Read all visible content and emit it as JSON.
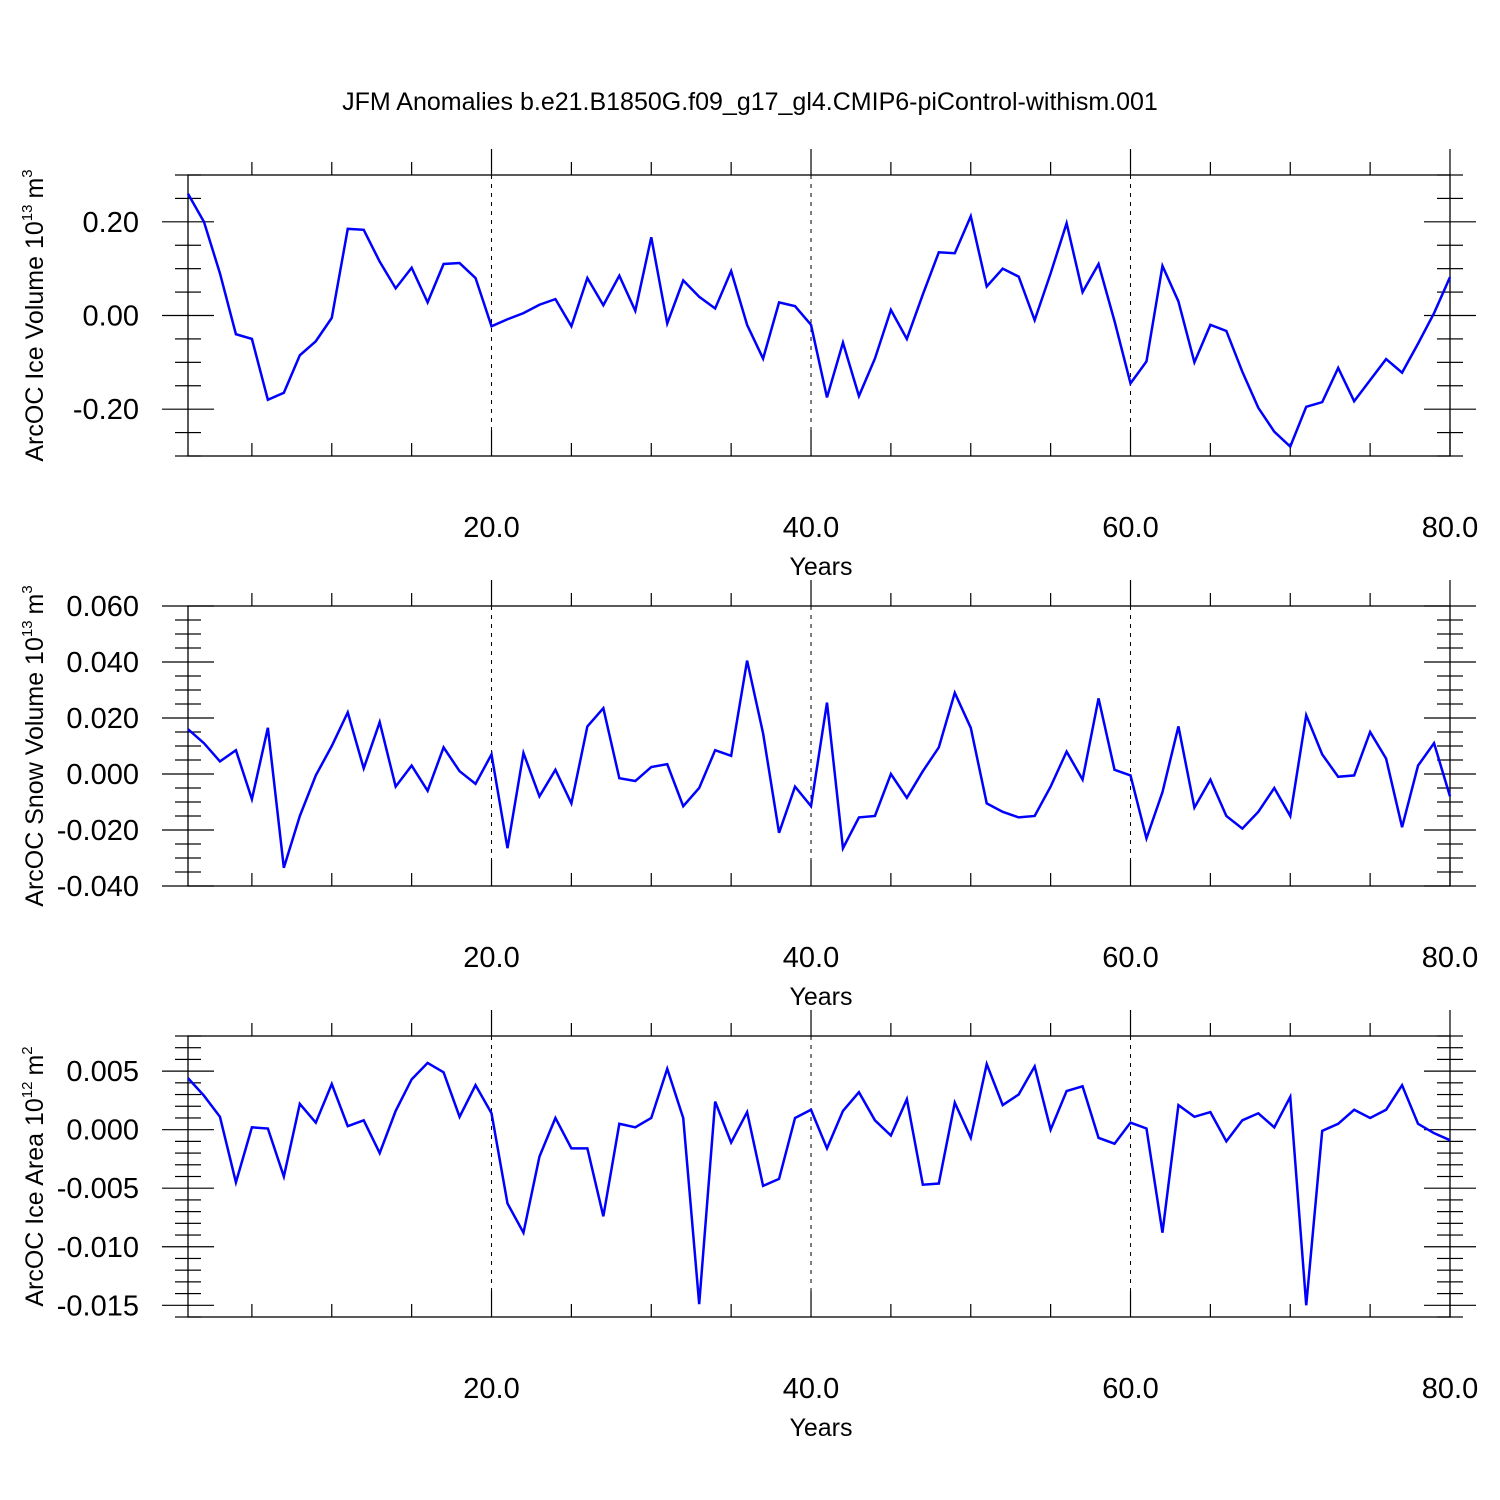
{
  "title": "JFM Anomalies b.e21.B1850G.f09_g17_gl4.CMIP6-piControl-withism.001",
  "chart_data": [
    {
      "type": "line",
      "xlabel": "Years",
      "ylabel": "ArcOC Ice Volume 10",
      "ylabel_exp": "13",
      "ylabel_unit": "m",
      "ylabel_unit_exp": "3",
      "xlim": [
        1,
        80
      ],
      "ylim": [
        -0.3,
        0.3
      ],
      "xticks": [
        20,
        40,
        60,
        80
      ],
      "xtick_labels": [
        "20.0",
        "40.0",
        "60.0",
        "80.0"
      ],
      "yticks": [
        -0.2,
        0.0,
        0.2
      ],
      "ytick_labels": [
        "-0.20",
        "0.00",
        "0.20"
      ],
      "grid_x": [
        20,
        40,
        60
      ],
      "series": [
        {
          "color": "#0000ff",
          "x": [
            1,
            2,
            3,
            4,
            5,
            6,
            7,
            8,
            9,
            10,
            11,
            12,
            13,
            14,
            15,
            16,
            17,
            18,
            19,
            20,
            21,
            22,
            23,
            24,
            25,
            26,
            27,
            28,
            29,
            30,
            31,
            32,
            33,
            34,
            35,
            36,
            37,
            38,
            39,
            40,
            41,
            42,
            43,
            44,
            45,
            46,
            47,
            48,
            49,
            50,
            51,
            52,
            53,
            54,
            55,
            56,
            57,
            58,
            59,
            60,
            61,
            62,
            63,
            64,
            65,
            66,
            67,
            68,
            69,
            70,
            71,
            72,
            73,
            74,
            75,
            76,
            77,
            78,
            79,
            80
          ],
          "y": [
            0.26,
            0.2,
            0.09,
            -0.04,
            -0.05,
            -0.18,
            -0.165,
            -0.085,
            -0.055,
            -0.005,
            0.185,
            0.183,
            0.115,
            0.058,
            0.102,
            0.028,
            0.11,
            0.112,
            0.08,
            -0.023,
            -0.008,
            0.005,
            0.023,
            0.035,
            -0.023,
            0.08,
            0.022,
            0.085,
            0.01,
            0.167,
            -0.017,
            0.075,
            0.04,
            0.015,
            0.095,
            -0.02,
            -0.092,
            0.028,
            0.02,
            -0.02,
            -0.175,
            -0.058,
            -0.172,
            -0.092,
            0.012,
            -0.05,
            0.045,
            0.135,
            0.133,
            0.212,
            0.062,
            0.1,
            0.083,
            -0.01,
            0.09,
            0.197,
            0.05,
            0.11,
            -0.012,
            -0.145,
            -0.098,
            0.106,
            0.03,
            -0.1,
            -0.02,
            -0.033,
            -0.12,
            -0.197,
            -0.248,
            -0.28,
            -0.195,
            -0.185,
            -0.112,
            -0.183,
            -0.138,
            -0.093,
            -0.122,
            -0.06,
            0.005,
            0.082
          ]
        }
      ]
    },
    {
      "type": "line",
      "xlabel": "Years",
      "ylabel": "ArcOC Snow Volume 10",
      "ylabel_exp": "13",
      "ylabel_unit": "m",
      "ylabel_unit_exp": "3",
      "xlim": [
        1,
        80
      ],
      "ylim": [
        -0.04,
        0.06
      ],
      "xticks": [
        20,
        40,
        60,
        80
      ],
      "xtick_labels": [
        "20.0",
        "40.0",
        "60.0",
        "80.0"
      ],
      "yticks": [
        -0.04,
        -0.02,
        0.0,
        0.02,
        0.04,
        0.06
      ],
      "ytick_labels": [
        "-0.040",
        "-0.020",
        "0.000",
        "0.020",
        "0.040",
        "0.060"
      ],
      "grid_x": [
        20,
        40,
        60
      ],
      "series": [
        {
          "color": "#0000ff",
          "x": [
            1,
            2,
            3,
            4,
            5,
            6,
            7,
            8,
            9,
            10,
            11,
            12,
            13,
            14,
            15,
            16,
            17,
            18,
            19,
            20,
            21,
            22,
            23,
            24,
            25,
            26,
            27,
            28,
            29,
            30,
            31,
            32,
            33,
            34,
            35,
            36,
            37,
            38,
            39,
            40,
            41,
            42,
            43,
            44,
            45,
            46,
            47,
            48,
            49,
            50,
            51,
            52,
            53,
            54,
            55,
            56,
            57,
            58,
            59,
            60,
            61,
            62,
            63,
            64,
            65,
            66,
            67,
            68,
            69,
            70,
            71,
            72,
            73,
            74,
            75,
            76,
            77,
            78,
            79,
            80
          ],
          "y": [
            0.016,
            0.011,
            0.0045,
            0.0085,
            -0.009,
            0.0165,
            -0.0335,
            -0.015,
            -0.0005,
            0.01,
            0.022,
            0.002,
            0.0185,
            -0.0045,
            0.003,
            -0.006,
            0.0095,
            0.001,
            -0.0035,
            0.007,
            -0.0265,
            0.0075,
            -0.008,
            0.0015,
            -0.0105,
            0.017,
            0.0235,
            -0.0015,
            -0.0025,
            0.0025,
            0.0035,
            -0.0115,
            -0.005,
            0.0085,
            0.0065,
            0.0405,
            0.0145,
            -0.021,
            -0.0045,
            -0.0115,
            0.0255,
            -0.0265,
            -0.0155,
            -0.015,
            0.0,
            -0.0085,
            0.001,
            0.0095,
            0.029,
            0.0165,
            -0.0105,
            -0.0135,
            -0.0155,
            -0.015,
            -0.0045,
            0.008,
            -0.002,
            0.027,
            0.0015,
            -0.0005,
            -0.023,
            -0.0065,
            0.017,
            -0.012,
            -0.002,
            -0.015,
            -0.0195,
            -0.0135,
            -0.005,
            -0.015,
            0.021,
            0.007,
            -0.001,
            -0.0005,
            0.015,
            0.0055,
            -0.019,
            0.003,
            0.011,
            -0.008
          ]
        }
      ]
    },
    {
      "type": "line",
      "xlabel": "Years",
      "ylabel": "ArcOC Ice Area 10",
      "ylabel_exp": "12",
      "ylabel_unit": "m",
      "ylabel_unit_exp": "2",
      "xlim": [
        1,
        80
      ],
      "ylim": [
        -0.016,
        0.008
      ],
      "xticks": [
        20,
        40,
        60,
        80
      ],
      "xtick_labels": [
        "20.0",
        "40.0",
        "60.0",
        "80.0"
      ],
      "yticks": [
        -0.015,
        -0.01,
        -0.005,
        0.0,
        0.005
      ],
      "ytick_labels": [
        "-0.015",
        "-0.010",
        "-0.005",
        "0.000",
        "0.005"
      ],
      "grid_x": [
        20,
        40,
        60
      ],
      "series": [
        {
          "color": "#0000ff",
          "x": [
            1,
            2,
            3,
            4,
            5,
            6,
            7,
            8,
            9,
            10,
            11,
            12,
            13,
            14,
            15,
            16,
            17,
            18,
            19,
            20,
            21,
            22,
            23,
            24,
            25,
            26,
            27,
            28,
            29,
            30,
            31,
            32,
            33,
            34,
            35,
            36,
            37,
            38,
            39,
            40,
            41,
            42,
            43,
            44,
            45,
            46,
            47,
            48,
            49,
            50,
            51,
            52,
            53,
            54,
            55,
            56,
            57,
            58,
            59,
            60,
            61,
            62,
            63,
            64,
            65,
            66,
            67,
            68,
            69,
            70,
            71,
            72,
            73,
            74,
            75,
            76,
            77,
            78,
            79,
            80
          ],
          "y": [
            0.0044,
            0.0029,
            0.0011,
            -0.0045,
            0.0002,
            0.0001,
            -0.004,
            0.0022,
            0.0006,
            0.0039,
            0.0003,
            0.0008,
            -0.002,
            0.0016,
            0.0043,
            0.0057,
            0.0049,
            0.0011,
            0.0038,
            0.0014,
            -0.0063,
            -0.0088,
            -0.0023,
            0.001,
            -0.0016,
            -0.0016,
            -0.0074,
            0.0005,
            0.0002,
            0.001,
            0.0052,
            0.001,
            -0.0149,
            0.0024,
            -0.0011,
            0.0015,
            -0.0048,
            -0.0042,
            0.001,
            0.0017,
            -0.0016,
            0.0016,
            0.0032,
            0.0008,
            -0.0005,
            0.0026,
            -0.0047,
            -0.0046,
            0.0023,
            -0.0007,
            0.0056,
            0.0021,
            0.003,
            0.0054,
            0.0,
            0.0033,
            0.0037,
            -0.0007,
            -0.0012,
            0.0006,
            0.0001,
            -0.0088,
            0.0021,
            0.0011,
            0.0015,
            -0.001,
            0.0008,
            0.0014,
            0.0002,
            0.0028,
            -0.015,
            -0.0001,
            0.0005,
            0.0017,
            0.001,
            0.0017,
            0.0038,
            0.0005,
            -0.0003,
            -0.0009
          ]
        }
      ]
    }
  ]
}
